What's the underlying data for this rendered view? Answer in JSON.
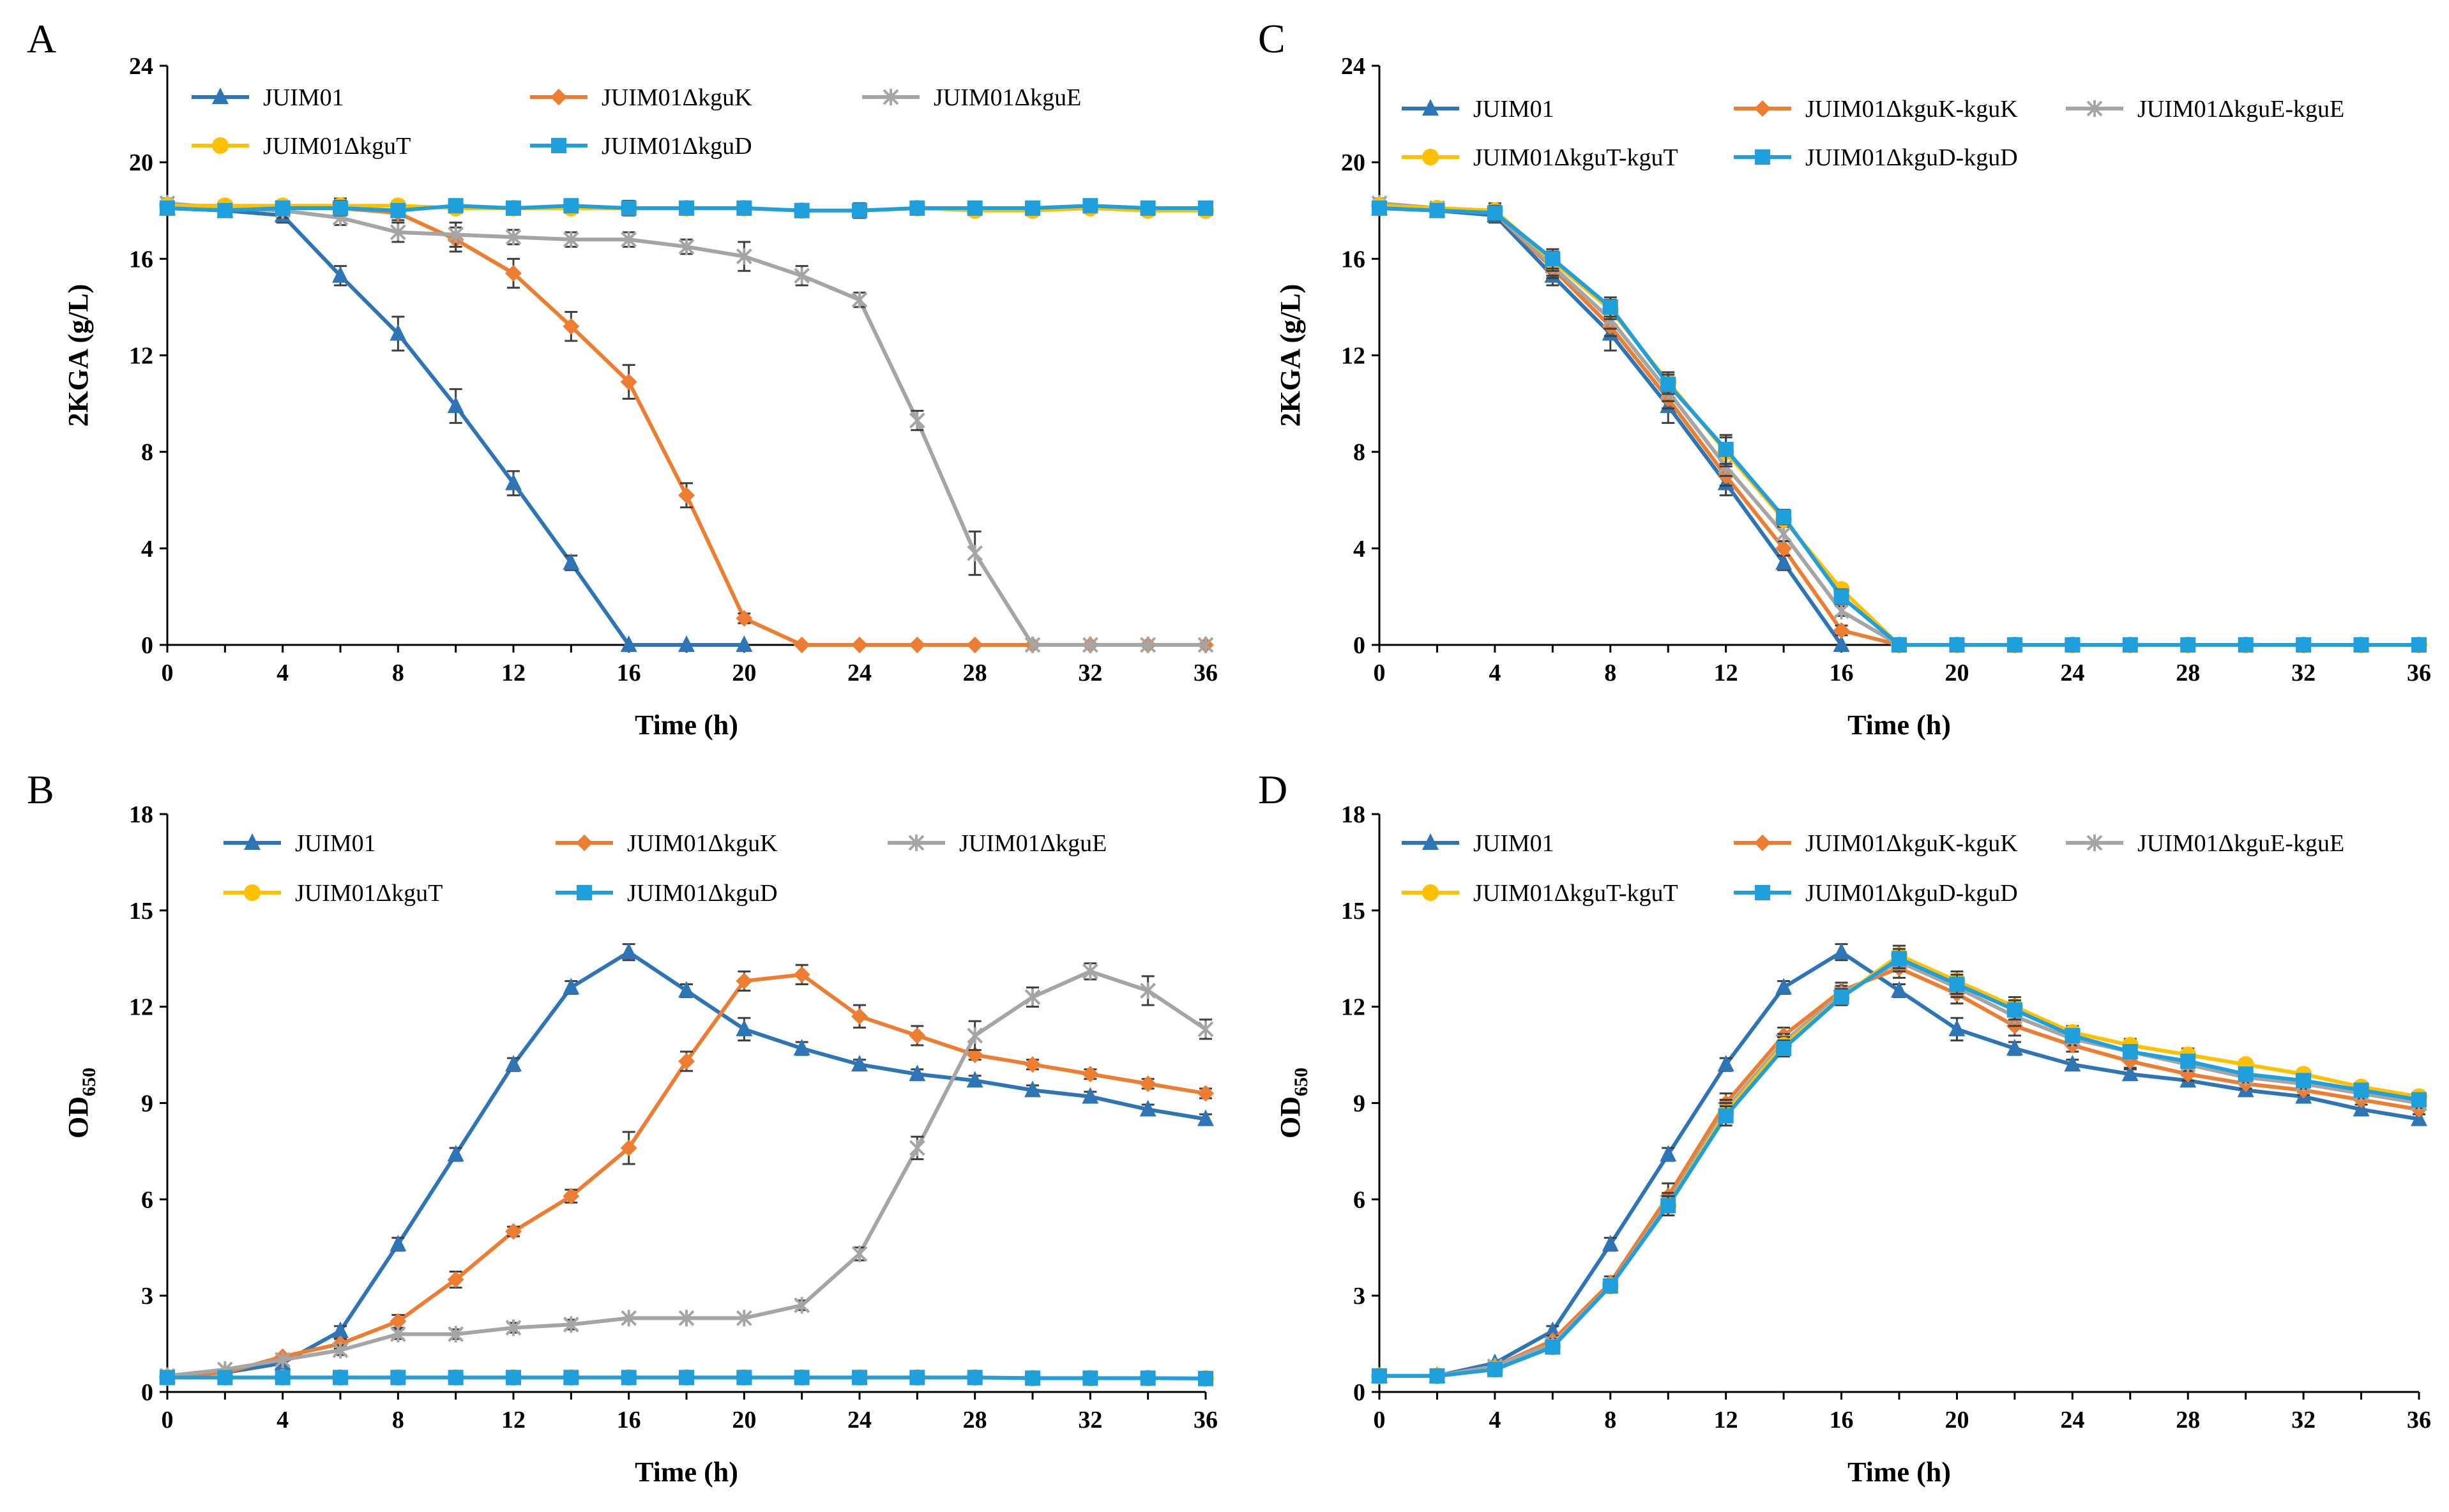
{
  "colors": {
    "JUIM01": "#2E75B6",
    "kguK": "#ED7D31",
    "kguE": "#A5A5A5",
    "kguT": "#FFC000",
    "kguD": "#1F9FDB",
    "errorbar": "#404040"
  },
  "chart_data": [
    {
      "panel": "A",
      "type": "line",
      "xlabel": "Time (h)",
      "ylabel": "2KGA (g/L)",
      "ylabel_sub": "",
      "xlim": [
        0,
        36
      ],
      "ylim": [
        0,
        24
      ],
      "xticks": [
        0,
        4,
        8,
        12,
        16,
        20,
        24,
        28,
        32,
        36
      ],
      "yticks": [
        0,
        4,
        8,
        12,
        16,
        20,
        24
      ],
      "x": [
        0,
        2,
        4,
        6,
        8,
        10,
        12,
        14,
        16,
        18,
        20,
        22,
        24,
        26,
        28,
        30,
        32,
        34,
        36
      ],
      "series": [
        {
          "name": "JUIM01",
          "marker": "triangle",
          "color_key": "JUIM01",
          "values": [
            18.1,
            18.0,
            17.8,
            15.3,
            12.9,
            9.9,
            6.7,
            3.4,
            0,
            0,
            0,
            null,
            null,
            null,
            null,
            null,
            null,
            null,
            null
          ],
          "errors": [
            0.2,
            0.2,
            0.3,
            0.4,
            0.7,
            0.7,
            0.5,
            0.3,
            0,
            0,
            0,
            null,
            null,
            null,
            null,
            null,
            null,
            null,
            null
          ]
        },
        {
          "name": "JUIM01ΔkguK",
          "marker": "diamond",
          "color_key": "kguK",
          "values": [
            18.2,
            18.2,
            18.1,
            18.1,
            17.9,
            16.8,
            15.4,
            13.2,
            10.9,
            6.2,
            1.1,
            0,
            0,
            0,
            0,
            0,
            0,
            0,
            0
          ],
          "errors": [
            0.2,
            0.2,
            0.2,
            0.3,
            0.3,
            0.5,
            0.6,
            0.6,
            0.7,
            0.5,
            0.2,
            0,
            0,
            0,
            0,
            0,
            0,
            0,
            0
          ]
        },
        {
          "name": "JUIM01ΔkguE",
          "marker": "x",
          "color_key": "kguE",
          "values": [
            18.3,
            18.1,
            18.0,
            17.7,
            17.1,
            17.0,
            16.9,
            16.8,
            16.8,
            16.5,
            16.1,
            15.3,
            14.3,
            9.3,
            3.8,
            0,
            0,
            0,
            0
          ],
          "errors": [
            0.2,
            0.2,
            0.3,
            0.3,
            0.4,
            0.5,
            0.3,
            0.3,
            0.3,
            0.3,
            0.6,
            0.4,
            0.3,
            0.4,
            0.9,
            0,
            0,
            0,
            0
          ]
        },
        {
          "name": "JUIM01ΔkguT",
          "marker": "circle",
          "color_key": "kguT",
          "values": [
            18.2,
            18.2,
            18.2,
            18.2,
            18.2,
            18.1,
            18.1,
            18.1,
            18.1,
            18.1,
            18.1,
            18.0,
            18.0,
            18.1,
            18.0,
            18.0,
            18.1,
            18.0,
            18.0
          ],
          "errors": [
            0.2,
            0.2,
            0.2,
            0.3,
            0.2,
            0.2,
            0.2,
            0.2,
            0.3,
            0.2,
            0.2,
            0.2,
            0.3,
            0.2,
            0.2,
            0.2,
            0.2,
            0.2,
            0.2
          ]
        },
        {
          "name": "JUIM01ΔkguD",
          "marker": "square",
          "color_key": "kguD",
          "values": [
            18.1,
            18.0,
            18.1,
            18.1,
            18.0,
            18.2,
            18.1,
            18.2,
            18.1,
            18.1,
            18.1,
            18.0,
            18.0,
            18.1,
            18.1,
            18.1,
            18.2,
            18.1,
            18.1
          ],
          "errors": [
            0.2,
            0.2,
            0.2,
            0.3,
            0.2,
            0.2,
            0.2,
            0.2,
            0.3,
            0.2,
            0.2,
            0.2,
            0.3,
            0.2,
            0.2,
            0.2,
            0.2,
            0.2,
            0.2
          ]
        }
      ]
    },
    {
      "panel": "B",
      "type": "line",
      "xlabel": "Time (h)",
      "ylabel": "OD",
      "ylabel_sub": "650",
      "xlim": [
        0,
        36
      ],
      "ylim": [
        0,
        18
      ],
      "xticks": [
        0,
        4,
        8,
        12,
        16,
        20,
        24,
        28,
        32,
        36
      ],
      "yticks": [
        0,
        3,
        6,
        9,
        12,
        15,
        18
      ],
      "x": [
        0,
        2,
        4,
        6,
        8,
        10,
        12,
        14,
        16,
        18,
        20,
        22,
        24,
        26,
        28,
        30,
        32,
        34,
        36
      ],
      "series": [
        {
          "name": "JUIM01",
          "marker": "triangle",
          "color_key": "JUIM01",
          "values": [
            0.5,
            0.6,
            0.9,
            1.9,
            4.6,
            7.4,
            10.2,
            12.6,
            13.7,
            12.5,
            11.3,
            10.7,
            10.2,
            9.9,
            9.7,
            9.4,
            9.2,
            8.8,
            8.5
          ],
          "errors": [
            0.05,
            0.05,
            0.1,
            0.15,
            0.2,
            0.2,
            0.2,
            0.2,
            0.25,
            0.2,
            0.35,
            0.2,
            0.15,
            0.15,
            0.15,
            0.15,
            0.15,
            0.15,
            0.15
          ]
        },
        {
          "name": "JUIM01ΔkguK",
          "marker": "diamond",
          "color_key": "kguK",
          "values": [
            0.5,
            0.6,
            1.1,
            1.5,
            2.2,
            3.5,
            5.0,
            6.1,
            7.6,
            10.3,
            12.8,
            13.0,
            11.7,
            11.1,
            10.5,
            10.2,
            9.9,
            9.6,
            9.3
          ],
          "errors": [
            0.05,
            0.05,
            0.1,
            0.15,
            0.2,
            0.25,
            0.15,
            0.2,
            0.5,
            0.3,
            0.3,
            0.3,
            0.35,
            0.3,
            0.15,
            0.15,
            0.15,
            0.15,
            0.15
          ]
        },
        {
          "name": "JUIM01ΔkguE",
          "marker": "x",
          "color_key": "kguE",
          "values": [
            0.5,
            0.7,
            1.0,
            1.3,
            1.8,
            1.8,
            2.0,
            2.1,
            2.3,
            2.3,
            2.3,
            2.7,
            4.3,
            7.6,
            11.1,
            12.3,
            13.1,
            12.5,
            11.3
          ],
          "errors": [
            0.05,
            0.05,
            0.1,
            0.15,
            0.15,
            0.15,
            0.15,
            0.15,
            0.1,
            0.1,
            0.1,
            0.15,
            0.2,
            0.35,
            0.45,
            0.3,
            0.25,
            0.45,
            0.3
          ]
        },
        {
          "name": "JUIM01ΔkguT",
          "marker": "circle",
          "color_key": "kguT",
          "values": [
            0.45,
            0.45,
            0.45,
            0.45,
            0.45,
            0.45,
            0.45,
            0.45,
            0.45,
            0.45,
            0.45,
            0.45,
            0.45,
            0.45,
            0.45,
            0.43,
            0.43,
            0.43,
            0.42
          ],
          "errors": [
            0.05,
            0.05,
            0.05,
            0.05,
            0.05,
            0.05,
            0.05,
            0.05,
            0.05,
            0.05,
            0.05,
            0.05,
            0.05,
            0.05,
            0.05,
            0.05,
            0.05,
            0.05,
            0.05
          ]
        },
        {
          "name": "JUIM01ΔkguD",
          "marker": "square",
          "color_key": "kguD",
          "values": [
            0.45,
            0.45,
            0.45,
            0.45,
            0.45,
            0.45,
            0.45,
            0.45,
            0.45,
            0.45,
            0.45,
            0.45,
            0.45,
            0.45,
            0.45,
            0.43,
            0.43,
            0.43,
            0.42
          ],
          "errors": [
            0.05,
            0.05,
            0.05,
            0.05,
            0.05,
            0.05,
            0.05,
            0.05,
            0.05,
            0.05,
            0.05,
            0.05,
            0.05,
            0.05,
            0.05,
            0.05,
            0.05,
            0.05,
            0.05
          ]
        }
      ]
    },
    {
      "panel": "C",
      "type": "line",
      "xlabel": "Time (h)",
      "ylabel": "2KGA (g/L)",
      "ylabel_sub": "",
      "xlim": [
        0,
        36
      ],
      "ylim": [
        0,
        24
      ],
      "xticks": [
        0,
        4,
        8,
        12,
        16,
        20,
        24,
        28,
        32,
        36
      ],
      "yticks": [
        0,
        4,
        8,
        12,
        16,
        20,
        24
      ],
      "x": [
        0,
        2,
        4,
        6,
        8,
        10,
        12,
        14,
        16,
        18,
        20,
        22,
        24,
        26,
        28,
        30,
        32,
        34,
        36
      ],
      "series": [
        {
          "name": "JUIM01",
          "marker": "triangle",
          "color_key": "JUIM01",
          "values": [
            18.1,
            18.0,
            17.8,
            15.3,
            12.9,
            9.9,
            6.7,
            3.4,
            0,
            null,
            null,
            null,
            null,
            null,
            null,
            null,
            null,
            null,
            null
          ],
          "errors": [
            0.2,
            0.2,
            0.3,
            0.4,
            0.7,
            0.7,
            0.5,
            0.3,
            0,
            null,
            null,
            null,
            null,
            null,
            null,
            null,
            null,
            null,
            null
          ]
        },
        {
          "name": "JUIM01ΔkguK-kguK",
          "marker": "diamond",
          "color_key": "kguK",
          "values": [
            18.2,
            18.1,
            17.9,
            15.6,
            13.2,
            10.2,
            7.0,
            4.0,
            0.6,
            0,
            0,
            0,
            0,
            0,
            0,
            0,
            0,
            0,
            0
          ],
          "errors": [
            0.2,
            0.2,
            0.3,
            0.4,
            0.4,
            0.4,
            0.4,
            0.3,
            0.2,
            0,
            0,
            0,
            0,
            0,
            0,
            0,
            0,
            0,
            0
          ]
        },
        {
          "name": "JUIM01ΔkguE-kguE",
          "marker": "x",
          "color_key": "kguE",
          "values": [
            18.3,
            18.1,
            17.9,
            15.7,
            13.5,
            10.5,
            7.4,
            4.6,
            1.4,
            0,
            0,
            0,
            0,
            0,
            0,
            0,
            0,
            0,
            0
          ],
          "errors": [
            0.2,
            0.2,
            0.3,
            0.4,
            0.4,
            0.4,
            0.4,
            0.3,
            0.2,
            0,
            0,
            0,
            0,
            0,
            0,
            0,
            0,
            0,
            0
          ]
        },
        {
          "name": "JUIM01ΔkguT-kguT",
          "marker": "circle",
          "color_key": "kguT",
          "values": [
            18.2,
            18.1,
            18.0,
            15.9,
            13.9,
            10.9,
            8.0,
            5.2,
            2.3,
            0,
            0,
            0,
            0,
            0,
            0,
            0,
            0,
            0,
            0
          ],
          "errors": [
            0.2,
            0.2,
            0.3,
            0.4,
            0.4,
            0.4,
            0.6,
            0.3,
            0.2,
            0,
            0,
            0,
            0,
            0,
            0,
            0,
            0,
            0,
            0
          ]
        },
        {
          "name": "JUIM01ΔkguD-kguD",
          "marker": "square",
          "color_key": "kguD",
          "values": [
            18.1,
            18.0,
            17.9,
            16.0,
            14.0,
            10.8,
            8.1,
            5.3,
            2.0,
            0,
            0,
            0,
            0,
            0,
            0,
            0,
            0,
            0,
            0
          ],
          "errors": [
            0.2,
            0.2,
            0.3,
            0.4,
            0.4,
            0.4,
            0.6,
            0.3,
            0.3,
            0,
            0,
            0,
            0,
            0,
            0,
            0,
            0,
            0,
            0
          ]
        }
      ]
    },
    {
      "panel": "D",
      "type": "line",
      "xlabel": "Time (h)",
      "ylabel": "OD",
      "ylabel_sub": "650",
      "xlim": [
        0,
        36
      ],
      "ylim": [
        0,
        18
      ],
      "xticks": [
        0,
        4,
        8,
        12,
        16,
        20,
        24,
        28,
        32,
        36
      ],
      "yticks": [
        0,
        3,
        6,
        9,
        12,
        15,
        18
      ],
      "x": [
        0,
        2,
        4,
        6,
        8,
        10,
        12,
        14,
        16,
        18,
        20,
        22,
        24,
        26,
        28,
        30,
        32,
        34,
        36
      ],
      "series": [
        {
          "name": "JUIM01",
          "marker": "triangle",
          "color_key": "JUIM01",
          "values": [
            0.5,
            0.5,
            0.9,
            1.9,
            4.6,
            7.4,
            10.2,
            12.6,
            13.7,
            12.5,
            11.3,
            10.7,
            10.2,
            9.9,
            9.7,
            9.4,
            9.2,
            8.8,
            8.5
          ],
          "errors": [
            0.05,
            0.05,
            0.1,
            0.15,
            0.2,
            0.2,
            0.2,
            0.2,
            0.25,
            0.2,
            0.35,
            0.2,
            0.15,
            0.15,
            0.15,
            0.15,
            0.15,
            0.15,
            0.15
          ]
        },
        {
          "name": "JUIM01ΔkguK-kguK",
          "marker": "diamond",
          "color_key": "kguK",
          "values": [
            0.5,
            0.5,
            0.8,
            1.6,
            3.4,
            6.1,
            9.0,
            11.1,
            12.5,
            13.2,
            12.4,
            11.4,
            10.8,
            10.3,
            9.9,
            9.6,
            9.4,
            9.1,
            8.8
          ],
          "errors": [
            0.05,
            0.05,
            0.1,
            0.15,
            0.2,
            0.4,
            0.3,
            0.25,
            0.25,
            0.3,
            0.3,
            0.3,
            0.2,
            0.2,
            0.2,
            0.15,
            0.15,
            0.15,
            0.15
          ]
        },
        {
          "name": "JUIM01ΔkguE-kguE",
          "marker": "x",
          "color_key": "kguE",
          "values": [
            0.5,
            0.5,
            0.8,
            1.5,
            3.3,
            5.9,
            8.8,
            10.9,
            12.4,
            13.4,
            12.6,
            11.7,
            11.0,
            10.6,
            10.2,
            9.8,
            9.6,
            9.3,
            9.0
          ],
          "errors": [
            0.05,
            0.05,
            0.1,
            0.15,
            0.2,
            0.3,
            0.3,
            0.25,
            0.25,
            0.3,
            0.3,
            0.3,
            0.2,
            0.2,
            0.2,
            0.15,
            0.15,
            0.15,
            0.15
          ]
        },
        {
          "name": "JUIM01ΔkguT-kguT",
          "marker": "circle",
          "color_key": "kguT",
          "values": [
            0.5,
            0.5,
            0.7,
            1.4,
            3.3,
            5.8,
            8.7,
            10.8,
            12.3,
            13.6,
            12.8,
            12.0,
            11.2,
            10.8,
            10.5,
            10.2,
            9.9,
            9.5,
            9.2
          ],
          "errors": [
            0.05,
            0.05,
            0.1,
            0.15,
            0.2,
            0.3,
            0.3,
            0.25,
            0.25,
            0.3,
            0.3,
            0.3,
            0.2,
            0.2,
            0.2,
            0.15,
            0.15,
            0.15,
            0.15
          ]
        },
        {
          "name": "JUIM01ΔkguD-kguD",
          "marker": "square",
          "color_key": "kguD",
          "values": [
            0.5,
            0.5,
            0.7,
            1.4,
            3.3,
            5.8,
            8.6,
            10.7,
            12.3,
            13.5,
            12.7,
            11.9,
            11.1,
            10.6,
            10.3,
            9.9,
            9.7,
            9.4,
            9.1
          ],
          "errors": [
            0.05,
            0.05,
            0.1,
            0.15,
            0.2,
            0.3,
            0.3,
            0.25,
            0.25,
            0.3,
            0.3,
            0.3,
            0.2,
            0.2,
            0.2,
            0.15,
            0.15,
            0.15,
            0.15
          ]
        }
      ]
    }
  ]
}
